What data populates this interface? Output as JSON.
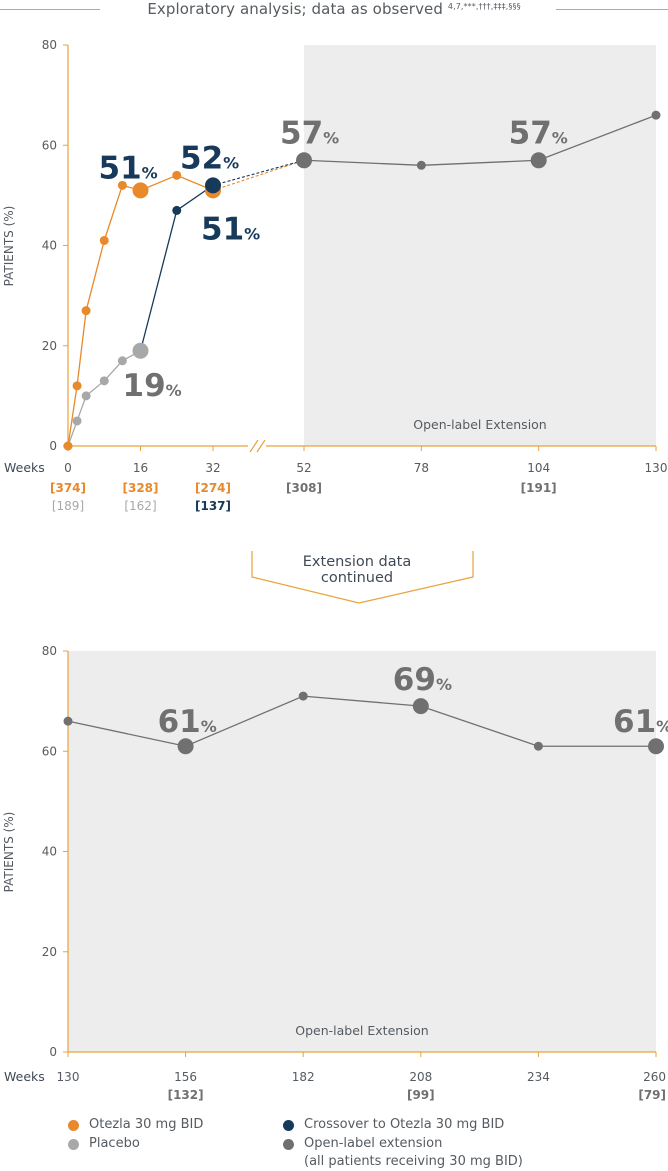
{
  "header": {
    "title": "Exploratory analysis; data as observed",
    "title_refs": "4,7,***,†††,‡‡‡,§§§"
  },
  "connector": {
    "label_line1": "Extension data",
    "label_line2": "continued"
  },
  "colors": {
    "otezla": "#e8892b",
    "placebo": "#a8a8a8",
    "crossover": "#173a5a",
    "ole": "#707070",
    "shade": "#ededed",
    "axis": "#e8a33c",
    "text": "#555b60"
  },
  "chart_data": [
    {
      "type": "line",
      "ylabel": "PATIENTS (%)",
      "ylim": [
        0,
        80
      ],
      "yticks": [
        "0",
        "20",
        "40",
        "60",
        "80"
      ],
      "x_axis_word": "Weeks",
      "shaded_region_label": "Open-label Extension",
      "xticks": [
        "0",
        "16",
        "32",
        "52",
        "78",
        "104",
        "130"
      ],
      "n_rows": [
        {
          "color_key": "otezla",
          "values": [
            "[374]",
            "[328]",
            "[274]",
            "",
            "",
            "",
            ""
          ]
        },
        {
          "color_key": "placebo",
          "values": [
            "[189]",
            "[162]",
            "",
            "",
            "",
            "",
            ""
          ]
        },
        {
          "color_key": "crossover",
          "values": [
            "",
            "",
            "[137]",
            "",
            "",
            "",
            ""
          ]
        },
        {
          "color_key": "ole",
          "values": [
            "",
            "",
            "",
            "[308]",
            "",
            "[191]",
            ""
          ]
        }
      ],
      "series": [
        {
          "key": "otezla",
          "x": [
            0,
            2,
            4,
            8,
            12,
            16,
            24,
            32
          ],
          "y": [
            0,
            12,
            27,
            41,
            52,
            51,
            54,
            51
          ]
        },
        {
          "key": "placebo",
          "x": [
            0,
            2,
            4,
            8,
            12,
            16
          ],
          "y": [
            0,
            5,
            10,
            13,
            17,
            19
          ]
        },
        {
          "key": "crossover",
          "x": [
            16,
            24,
            32
          ],
          "y": [
            19,
            47,
            52
          ]
        },
        {
          "key": "ole",
          "x": [
            52,
            78,
            104,
            130
          ],
          "y": [
            57,
            56,
            57,
            66
          ]
        }
      ],
      "big_points": [
        {
          "key": "otezla",
          "x": 16,
          "y": 51
        },
        {
          "key": "otezla",
          "x": 32,
          "y": 51
        },
        {
          "key": "placebo",
          "x": 16,
          "y": 19
        },
        {
          "key": "crossover",
          "x": 32,
          "y": 52
        },
        {
          "key": "ole",
          "x": 52,
          "y": 57
        },
        {
          "key": "ole",
          "x": 104,
          "y": 57
        }
      ],
      "dashed_links": [
        {
          "key": "otezla",
          "from": [
            32,
            51
          ],
          "to": [
            52,
            57
          ]
        },
        {
          "key": "crossover",
          "from": [
            32,
            52
          ],
          "to": [
            52,
            57
          ]
        }
      ],
      "annotations": [
        {
          "num": "51",
          "pct": "%",
          "color_key": "crossover",
          "x": 16,
          "y": 51
        },
        {
          "num": "52",
          "pct": "%",
          "color_key": "crossover",
          "x": 32,
          "y": 52
        },
        {
          "num": "51",
          "pct": "%",
          "color_key": "crossover",
          "x": 32,
          "y": 51
        },
        {
          "num": "19",
          "pct": "%",
          "color_key": "ole",
          "x": 16,
          "y": 19
        },
        {
          "num": "57",
          "pct": "%",
          "color_key": "ole",
          "x": 52,
          "y": 57
        },
        {
          "num": "57",
          "pct": "%",
          "color_key": "ole",
          "x": 104,
          "y": 57
        }
      ]
    },
    {
      "type": "line",
      "ylabel": "PATIENTS (%)",
      "ylim": [
        0,
        80
      ],
      "yticks": [
        "0",
        "20",
        "40",
        "60",
        "80"
      ],
      "x_axis_word": "Weeks",
      "shaded_region_label": "Open-label Extension",
      "xticks": [
        "130",
        "156",
        "182",
        "208",
        "234",
        "260"
      ],
      "n_rows": [
        {
          "color_key": "ole",
          "values": [
            "",
            "[132]",
            "",
            "[99]",
            "",
            "[79]"
          ]
        }
      ],
      "series": [
        {
          "key": "ole",
          "x": [
            130,
            156,
            182,
            208,
            234,
            260
          ],
          "y": [
            66,
            61,
            71,
            69,
            61,
            61
          ]
        }
      ],
      "big_points": [
        {
          "key": "ole",
          "x": 156,
          "y": 61
        },
        {
          "key": "ole",
          "x": 208,
          "y": 69
        },
        {
          "key": "ole",
          "x": 260,
          "y": 61
        }
      ],
      "annotations": [
        {
          "num": "61",
          "pct": "%",
          "color_key": "ole",
          "x": 156,
          "y": 61
        },
        {
          "num": "69",
          "pct": "%",
          "color_key": "ole",
          "x": 208,
          "y": 69
        },
        {
          "num": "61",
          "pct": "%",
          "color_key": "ole",
          "x": 260,
          "y": 61
        }
      ]
    }
  ],
  "legend": [
    {
      "label": "Otezla 30 mg BID",
      "color_key": "otezla"
    },
    {
      "label": "Placebo",
      "color_key": "placebo"
    },
    {
      "label": "Crossover to Otezla 30 mg BID",
      "color_key": "crossover"
    },
    {
      "label": "Open-label extension\n(all patients receiving 30 mg BID)",
      "color_key": "ole"
    }
  ]
}
